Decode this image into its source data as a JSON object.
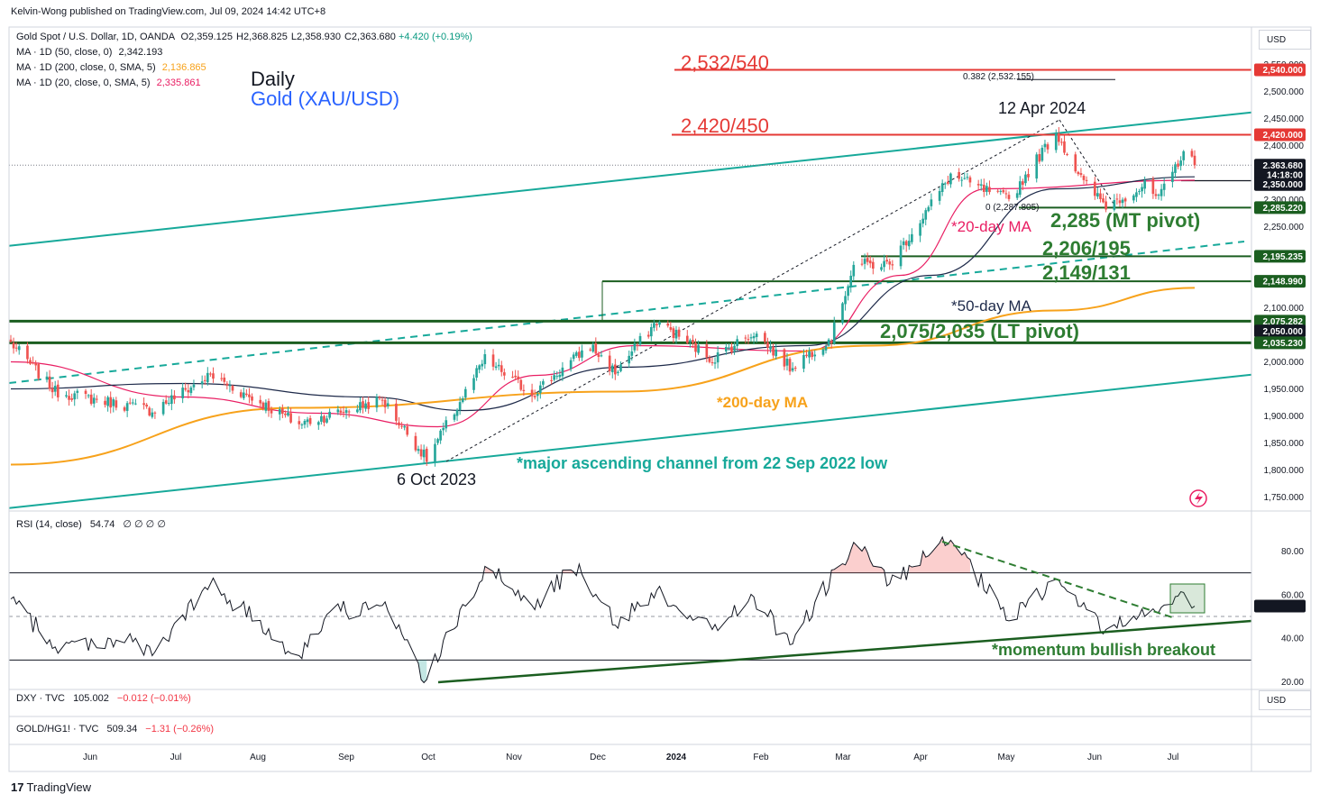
{
  "header": {
    "publisher_line": "Kelvin-Wong published on TradingView.com, Jul 09, 2024 14:42 UTC+8"
  },
  "legend": {
    "symbol": "Gold Spot / U.S. Dollar, 1D, OANDA",
    "ohlc": [
      {
        "k": "O",
        "v": "2,359.125"
      },
      {
        "k": "H",
        "v": "2,368.825"
      },
      {
        "k": "L",
        "v": "2,358.930"
      },
      {
        "k": "C",
        "v": "2,363.680"
      }
    ],
    "change": "+4.420 (+0.19%)",
    "mas": [
      {
        "label": "MA · 1D (50, close, 0)",
        "value": "2,342.193",
        "color": "#131722"
      },
      {
        "label": "MA · 1D (200, close, 0, SMA, 5)",
        "value": "2,136.865",
        "color": "#f7a21b"
      },
      {
        "label": "MA · 1D (20, close, 0, SMA, 5)",
        "value": "2,335.861",
        "color": "#e91e63"
      }
    ]
  },
  "title": {
    "line1": "Daily",
    "line2": "Gold (XAU/USD)"
  },
  "colors": {
    "up": "#26a69a",
    "down": "#ef5350",
    "ma20": "#e91e63",
    "ma50": "#1e2a4a",
    "ma200": "#f7a21b",
    "channel": "#17a99a",
    "support": "#1b5e20",
    "resistance": "#e53935",
    "annot_green": "#2e7d32",
    "annot_teal": "#17a99a",
    "title_blue": "#2962ff"
  },
  "annotations": {
    "res_upper": "2,532/540",
    "res_lower": "2,420/450",
    "fib_label": "0.382 (2,532.155)",
    "peak_label": "12 Apr 2024",
    "low_label": "6 Oct 2023",
    "fib0_label": "0 (2,287.805)",
    "mt_pivot": "2,285 (MT pivot)",
    "s_206": "2,206/195",
    "s_149": "2,149/131",
    "lt_pivot": "2,075/2,035 (LT pivot)",
    "ma20": "*20-day MA",
    "ma50": "*50-day MA",
    "ma200": "*200-day MA",
    "channel": "*major ascending channel from 22 Sep 2022 low",
    "momentum": "*momentum bullish breakout"
  },
  "price_axis": {
    "currency": "USD",
    "ticks": [
      "2,550.000",
      "2,500.000",
      "2,450.000",
      "2,400.000",
      "2,350.000",
      "2,300.000",
      "2,250.000",
      "2,200.000",
      "2,150.000",
      "2,100.000",
      "2,050.000",
      "2,000.000",
      "1,950.000",
      "1,900.000",
      "1,850.000",
      "1,800.000",
      "1,750.000"
    ],
    "tick_values": [
      2550,
      2500,
      2450,
      2400,
      2350,
      2300,
      2250,
      2200,
      2150,
      2100,
      2050,
      2000,
      1950,
      1900,
      1850,
      1800,
      1750
    ],
    "badges": [
      {
        "text": "2,540.000",
        "value": 2540,
        "color": "#e53935"
      },
      {
        "text": "2,420.000",
        "value": 2420,
        "color": "#e53935"
      },
      {
        "text": "2,363.680",
        "value": 2363.68,
        "color": "#131722"
      },
      {
        "text": "14:18:00",
        "value": 2346,
        "color": "#131722"
      },
      {
        "text": "2,350.000",
        "value": 2328,
        "color": "#131722"
      },
      {
        "text": "2,285.220",
        "value": 2285.22,
        "color": "#1b5e20"
      },
      {
        "text": "2,195.235",
        "value": 2195.235,
        "color": "#1b5e20"
      },
      {
        "text": "2,148.990",
        "value": 2148.99,
        "color": "#1b5e20"
      },
      {
        "text": "2,075.282",
        "value": 2075.282,
        "color": "#1b5e20"
      },
      {
        "text": "2,050.000",
        "value": 2057,
        "color": "#131722"
      },
      {
        "text": "2,035.230",
        "value": 2035.23,
        "color": "#1b5e20"
      }
    ]
  },
  "rsi": {
    "label": "RSI (14, close)",
    "value": "54.74",
    "extras": "∅ ∅ ∅ ∅",
    "ticks": [
      "80.00",
      "60.00",
      "40.00",
      "20.00"
    ],
    "tick_values": [
      80,
      60,
      40,
      20
    ],
    "upper": 70,
    "lower": 30,
    "mid": 50,
    "current_badge": "54.74"
  },
  "dxy": {
    "label": "DXY · TVC",
    "value": "105.002",
    "change": "−0.012 (−0.01%)",
    "currency": "USD"
  },
  "gold_copper": {
    "label": "GOLD/HG1! · TVC",
    "value": "509.34",
    "change": "−1.31 (−0.26%)"
  },
  "time_axis": {
    "labels": [
      {
        "t": "Jun",
        "x": 100
      },
      {
        "t": "Jul",
        "x": 195
      },
      {
        "t": "Aug",
        "x": 286
      },
      {
        "t": "Sep",
        "x": 384
      },
      {
        "t": "Oct",
        "x": 475
      },
      {
        "t": "Nov",
        "x": 570
      },
      {
        "t": "Dec",
        "x": 663
      },
      {
        "t": "2024",
        "x": 750,
        "bold": true
      },
      {
        "t": "Feb",
        "x": 844
      },
      {
        "t": "Mar",
        "x": 935
      },
      {
        "t": "Apr",
        "x": 1021
      },
      {
        "t": "May",
        "x": 1116
      },
      {
        "t": "Jun",
        "x": 1214
      },
      {
        "t": "Jul",
        "x": 1301
      }
    ]
  },
  "footer": {
    "brand": "TradingView"
  },
  "chart_data": {
    "type": "candlestick",
    "title": "Gold (XAU/USD)",
    "timeframe": "Daily",
    "x_range": [
      "2023-05-09",
      "2024-07-09"
    ],
    "ylim": [
      1720,
      2570
    ],
    "anchors": [
      {
        "date": "2023-05-09",
        "close": 2035
      },
      {
        "date": "2023-05-25",
        "close": 1945
      },
      {
        "date": "2023-06-29",
        "close": 1910
      },
      {
        "date": "2023-07-20",
        "close": 1975
      },
      {
        "date": "2023-08-21",
        "close": 1885
      },
      {
        "date": "2023-09-20",
        "close": 1930
      },
      {
        "date": "2023-10-06",
        "close": 1820
      },
      {
        "date": "2023-10-27",
        "close": 2005
      },
      {
        "date": "2023-11-13",
        "close": 1940
      },
      {
        "date": "2023-12-04",
        "close": 2030
      },
      {
        "date": "2023-12-13",
        "close": 1980
      },
      {
        "date": "2023-12-28",
        "close": 2075
      },
      {
        "date": "2024-01-17",
        "close": 2005
      },
      {
        "date": "2024-02-01",
        "close": 2055
      },
      {
        "date": "2024-02-14",
        "close": 1990
      },
      {
        "date": "2024-02-29",
        "close": 2045
      },
      {
        "date": "2024-03-08",
        "close": 2180
      },
      {
        "date": "2024-03-21",
        "close": 2180
      },
      {
        "date": "2024-04-12",
        "close": 2345
      },
      {
        "date": "2024-04-23",
        "close": 2320
      },
      {
        "date": "2024-05-03",
        "close": 2300
      },
      {
        "date": "2024-05-20",
        "close": 2425
      },
      {
        "date": "2024-05-30",
        "close": 2330
      },
      {
        "date": "2024-06-07",
        "close": 2290
      },
      {
        "date": "2024-06-21",
        "close": 2325
      },
      {
        "date": "2024-06-26",
        "close": 2300
      },
      {
        "date": "2024-07-05",
        "close": 2390
      },
      {
        "date": "2024-07-09",
        "close": 2363.68
      }
    ],
    "moving_averages": [
      {
        "name": "MA 20",
        "points": [
          {
            "date": "2023-05-09",
            "v": 2000
          },
          {
            "date": "2023-07-10",
            "v": 1935
          },
          {
            "date": "2023-08-28",
            "v": 1905
          },
          {
            "date": "2023-10-10",
            "v": 1880
          },
          {
            "date": "2023-11-15",
            "v": 1975
          },
          {
            "date": "2023-12-20",
            "v": 2030
          },
          {
            "date": "2024-02-20",
            "v": 2020
          },
          {
            "date": "2024-03-25",
            "v": 2160
          },
          {
            "date": "2024-04-25",
            "v": 2320
          },
          {
            "date": "2024-07-09",
            "v": 2335.861
          }
        ]
      },
      {
        "name": "MA 50",
        "points": [
          {
            "date": "2023-05-09",
            "v": 1950
          },
          {
            "date": "2023-07-10",
            "v": 1960
          },
          {
            "date": "2023-09-15",
            "v": 1935
          },
          {
            "date": "2023-10-20",
            "v": 1910
          },
          {
            "date": "2023-12-15",
            "v": 1990
          },
          {
            "date": "2024-02-20",
            "v": 2030
          },
          {
            "date": "2024-04-05",
            "v": 2160
          },
          {
            "date": "2024-05-20",
            "v": 2320
          },
          {
            "date": "2024-07-09",
            "v": 2342.193
          }
        ]
      },
      {
        "name": "MA 200",
        "points": [
          {
            "date": "2023-05-09",
            "v": 1810
          },
          {
            "date": "2023-08-20",
            "v": 1915
          },
          {
            "date": "2023-12-15",
            "v": 1945
          },
          {
            "date": "2024-03-15",
            "v": 2030
          },
          {
            "date": "2024-05-20",
            "v": 2095
          },
          {
            "date": "2024-07-09",
            "v": 2136.865
          }
        ]
      }
    ],
    "levels": [
      {
        "value": 2540,
        "label": "2,532/540"
      },
      {
        "value": 2420,
        "label": "2,420/450"
      },
      {
        "value": 2285.22,
        "label": "2,285 (MT pivot)"
      },
      {
        "value": 2195.235,
        "label": "2,206/195"
      },
      {
        "value": 2148.99,
        "label": "2,149/131"
      },
      {
        "value": 2075.282,
        "label": "2,075/2,035 (LT pivot)"
      },
      {
        "value": 2035.23,
        "label": "2,075/2,035 (LT pivot)"
      }
    ],
    "channel": {
      "upper": [
        {
          "date": "2023-05-09",
          "v": 2215
        },
        {
          "date": "2024-07-09",
          "v": 2450
        }
      ],
      "lower": [
        {
          "date": "2023-05-09",
          "v": 1730
        },
        {
          "date": "2024-07-09",
          "v": 1965
        }
      ]
    },
    "rsi_series": [
      {
        "date": "2023-05-09",
        "v": 58
      },
      {
        "date": "2023-05-25",
        "v": 36
      },
      {
        "date": "2023-06-20",
        "v": 40
      },
      {
        "date": "2023-06-29",
        "v": 32
      },
      {
        "date": "2023-07-20",
        "v": 65
      },
      {
        "date": "2023-08-21",
        "v": 32
      },
      {
        "date": "2023-09-01",
        "v": 52
      },
      {
        "date": "2023-09-20",
        "v": 55
      },
      {
        "date": "2023-10-06",
        "v": 21
      },
      {
        "date": "2023-10-27",
        "v": 73
      },
      {
        "date": "2023-11-13",
        "v": 55
      },
      {
        "date": "2023-11-30",
        "v": 74
      },
      {
        "date": "2023-12-13",
        "v": 46
      },
      {
        "date": "2023-12-28",
        "v": 62
      },
      {
        "date": "2024-01-17",
        "v": 44
      },
      {
        "date": "2024-02-01",
        "v": 59
      },
      {
        "date": "2024-02-14",
        "v": 37
      },
      {
        "date": "2024-03-08",
        "v": 84
      },
      {
        "date": "2024-03-21",
        "v": 65
      },
      {
        "date": "2024-04-12",
        "v": 85
      },
      {
        "date": "2024-05-03",
        "v": 48
      },
      {
        "date": "2024-05-20",
        "v": 67
      },
      {
        "date": "2024-06-07",
        "v": 44
      },
      {
        "date": "2024-06-21",
        "v": 50
      },
      {
        "date": "2024-07-05",
        "v": 61
      },
      {
        "date": "2024-07-09",
        "v": 54.74
      }
    ]
  }
}
